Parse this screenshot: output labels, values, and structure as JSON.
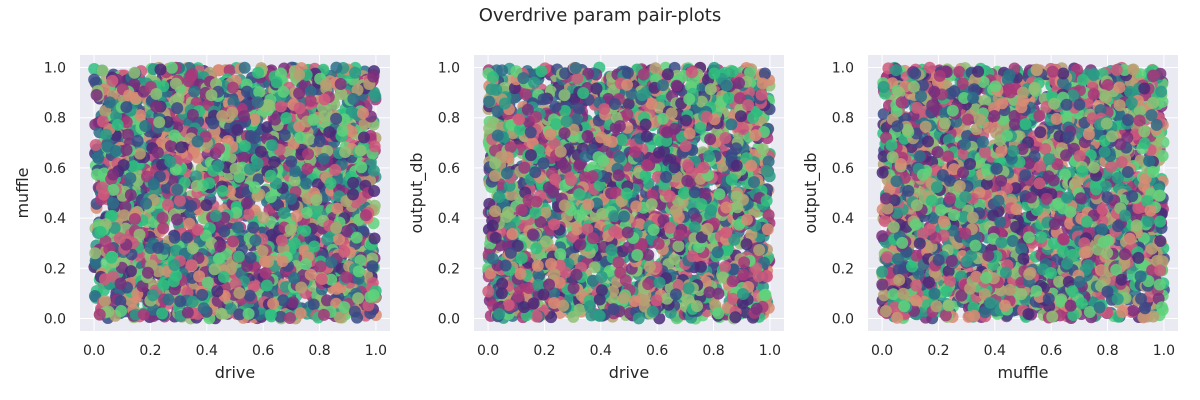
{
  "title": "Overdrive param pair-plots",
  "palette": [
    "#4b2a79",
    "#7b2f7c",
    "#a8387a",
    "#cf5a7c",
    "#d98b73",
    "#b6a072",
    "#8fbf76",
    "#5fd27b",
    "#2fbf7f",
    "#2b9a86",
    "#2d6f88",
    "#3a4b86"
  ],
  "background": "#eaeaf2",
  "grid_color": "#ffffff",
  "chart_data": [
    {
      "type": "scatter",
      "xlabel": "drive",
      "ylabel": "muffle",
      "xlim": [
        -0.05,
        1.05
      ],
      "ylim": [
        -0.05,
        1.05
      ],
      "xticks": [
        "0.0",
        "0.2",
        "0.4",
        "0.6",
        "0.8",
        "1.0"
      ],
      "yticks": [
        "0.0",
        "0.2",
        "0.4",
        "0.6",
        "0.8",
        "1.0"
      ],
      "distribution": "uniform",
      "x_range": [
        0,
        1
      ],
      "y_range": [
        0,
        1
      ],
      "point_count": 3000,
      "grid": true,
      "color_map": "palette"
    },
    {
      "type": "scatter",
      "xlabel": "drive",
      "ylabel": "output_db",
      "xlim": [
        -0.05,
        1.05
      ],
      "ylim": [
        -0.05,
        1.05
      ],
      "xticks": [
        "0.0",
        "0.2",
        "0.4",
        "0.6",
        "0.8",
        "1.0"
      ],
      "yticks": [
        "0.0",
        "0.2",
        "0.4",
        "0.6",
        "0.8",
        "1.0"
      ],
      "distribution": "uniform",
      "x_range": [
        0,
        1
      ],
      "y_range": [
        0,
        1
      ],
      "point_count": 3000,
      "grid": true,
      "color_map": "palette"
    },
    {
      "type": "scatter",
      "xlabel": "muffle",
      "ylabel": "output_db",
      "xlim": [
        -0.05,
        1.05
      ],
      "ylim": [
        -0.05,
        1.05
      ],
      "xticks": [
        "0.0",
        "0.2",
        "0.4",
        "0.6",
        "0.8",
        "1.0"
      ],
      "yticks": [
        "0.0",
        "0.2",
        "0.4",
        "0.6",
        "0.8",
        "1.0"
      ],
      "distribution": "uniform",
      "x_range": [
        0,
        1
      ],
      "y_range": [
        0,
        1
      ],
      "point_count": 3000,
      "grid": true,
      "color_map": "palette"
    }
  ]
}
